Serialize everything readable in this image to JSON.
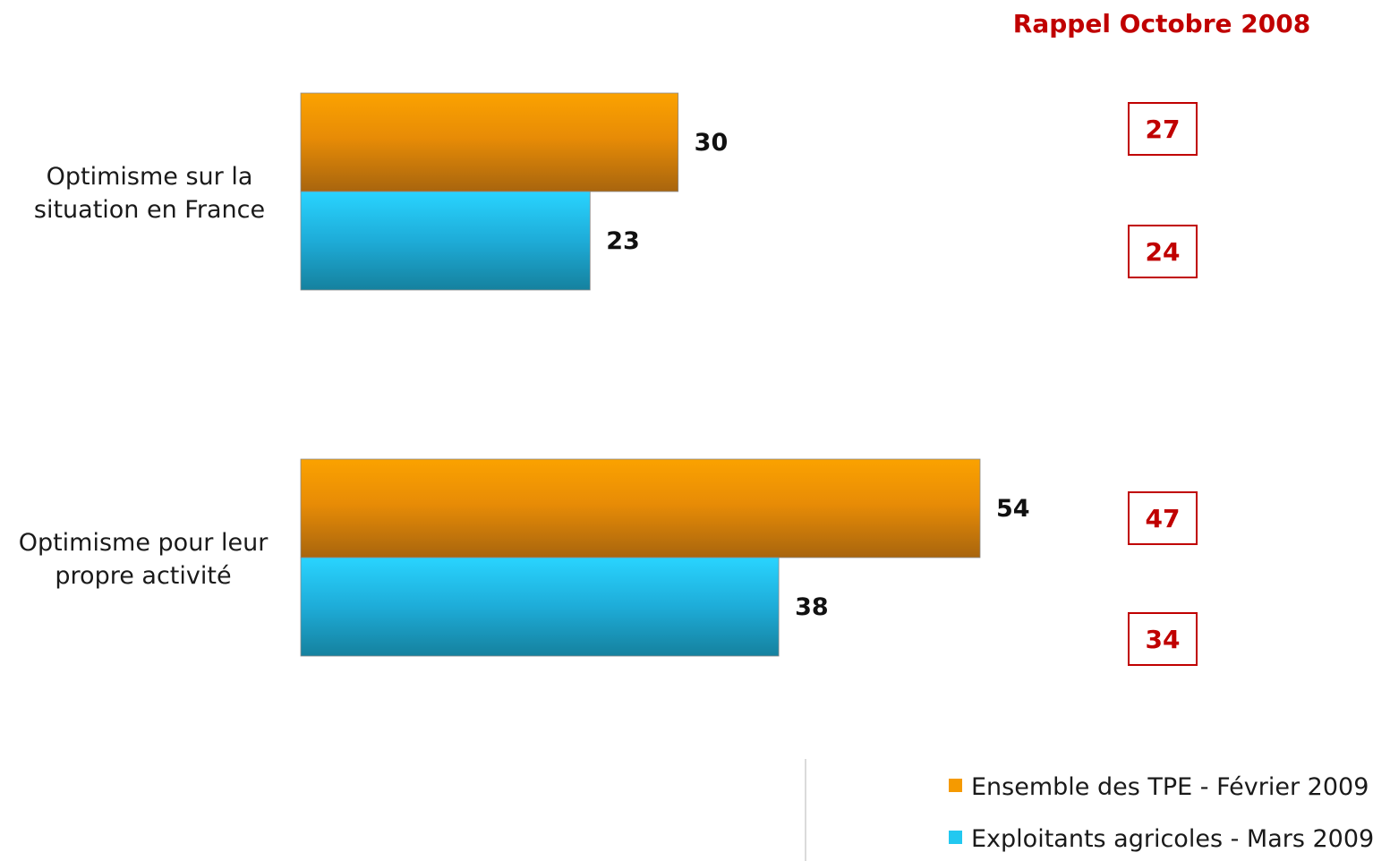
{
  "chart_data": {
    "type": "bar",
    "orientation": "horizontal",
    "categories": [
      [
        "Optimisme sur la",
        "situation en France"
      ],
      [
        "Optimisme pour leur",
        "propre activité"
      ]
    ],
    "series": [
      {
        "name": "Ensemble des TPE - Février 2009",
        "values": [
          30,
          54
        ],
        "color": "#f59a00"
      },
      {
        "name": "Exploitants agricoles - Mars 2009",
        "values": [
          23,
          38
        ],
        "color": "#22c8f0"
      }
    ],
    "xlim": [
      0,
      54
    ],
    "legend_position": "bottom-right",
    "grid": false,
    "recall": {
      "title": "Rappel Octobre 2008",
      "color": "#c00000",
      "values": [
        [
          27,
          24
        ],
        [
          47,
          34
        ]
      ]
    }
  }
}
